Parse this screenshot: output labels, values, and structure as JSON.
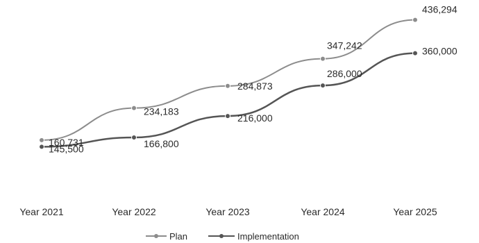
{
  "chart_data": {
    "type": "line",
    "categories": [
      "Year 2021",
      "Year 2022",
      "Year 2023",
      "Year 2024",
      "Year 2025"
    ],
    "series": [
      {
        "name": "Plan",
        "values": [
          160731,
          234183,
          284873,
          347242,
          436294
        ],
        "labels": [
          "160,731",
          "234,183",
          "284,873",
          "347,242",
          "436,294"
        ]
      },
      {
        "name": "Implementation",
        "values": [
          145500,
          166800,
          216000,
          286000,
          360000
        ],
        "labels": [
          "145,500",
          "166,800",
          "216,000",
          "286,000",
          "360,000"
        ]
      }
    ],
    "colors": {
      "plan": "#8c8c8c",
      "implementation": "#555555",
      "text": "#2a2a2a"
    },
    "legend_position": "bottom",
    "grid": false,
    "ylim": [
      100000,
      450000
    ]
  }
}
